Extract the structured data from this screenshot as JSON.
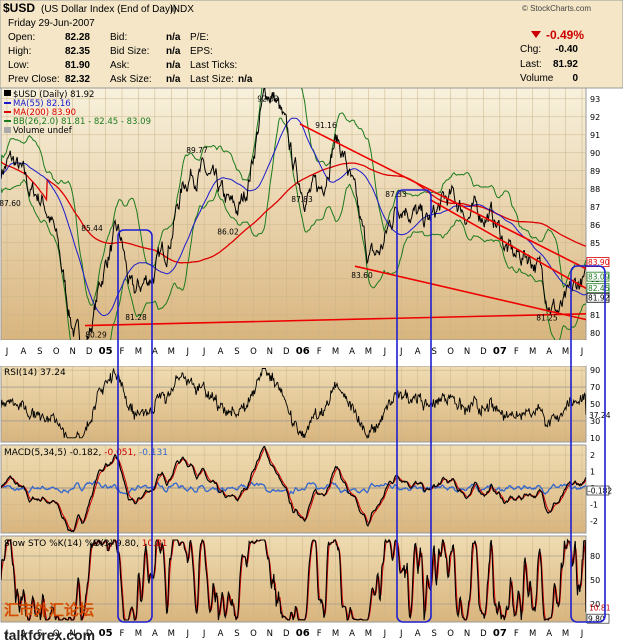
{
  "header": {
    "symbol": "$USD",
    "name": "(US Dollar Index (End of Day))",
    "exchange": "INDX",
    "date": "Friday  29-Jun-2007",
    "brand": "© StockCharts.com",
    "change_pct": "-0.49%",
    "chg_label": "Chg:",
    "chg_value": "-0.40",
    "last_label": "Last:",
    "last_value": "81.92",
    "volume_label": "Volume",
    "volume_value": "0",
    "quote": [
      {
        "label": "Open:",
        "value": "82.28"
      },
      {
        "label": "High:",
        "value": "82.35"
      },
      {
        "label": "Low:",
        "value": "81.90"
      },
      {
        "label": "Prev Close:",
        "value": "82.32"
      }
    ],
    "quote2": [
      {
        "label": "Bid:",
        "value": "n/a"
      },
      {
        "label": "Bid Size:",
        "value": "n/a"
      },
      {
        "label": "Ask:",
        "value": "n/a"
      },
      {
        "label": "Ask Size:",
        "value": "n/a"
      }
    ],
    "quote3": [
      {
        "label": "P/E:",
        "value": ""
      },
      {
        "label": "EPS:",
        "value": ""
      },
      {
        "label": "Last Ticks:",
        "value": ""
      },
      {
        "label": "Last Size:",
        "value": "n/a"
      }
    ]
  },
  "legend": {
    "price": "$USD (Daily) 81.92",
    "ma55": "MA(55) 82.16",
    "ma200": "MA(200) 83.90",
    "bb": "BB(26,2.0) 81.81 - 82.45 - 83.09",
    "volume": "Volume undef",
    "rsi": "RSI(14) 37.24",
    "macd_prefix": "MACD(5,34,5) -0.182,",
    "macd_signal": " -0.051,",
    "macd_hist": " -0.131",
    "stoch_prefix": "Slow STO %K(14) %D(3) 9.80,",
    "stoch_d": " 10.81"
  },
  "colors": {
    "panel_bg_top": "#f8f1dc",
    "panel_bg_bottom": "#d9b57e",
    "price": "#000000",
    "ma55": "#1a1acc",
    "ma200": "#dd0000",
    "bb": "#1d7a1d",
    "trend": "#ee0000",
    "highlight": "#1f1fd0",
    "macd_hist": "#3366cc",
    "stoch_d": "#cc0000",
    "down": "#cc0000"
  },
  "x_ticks": [
    "J",
    "A",
    "S",
    "O",
    "N",
    "D",
    "05",
    "F",
    "M",
    "A",
    "M",
    "J",
    "J",
    "A",
    "S",
    "O",
    "N",
    "D",
    "06",
    "F",
    "M",
    "A",
    "M",
    "J",
    "J",
    "A",
    "S",
    "O",
    "N",
    "D",
    "07",
    "F",
    "M",
    "A",
    "M",
    "J"
  ],
  "price_axis": {
    "min": 80,
    "max": 93,
    "ticks": [
      "80",
      "81",
      "82",
      "83",
      "84",
      "85",
      "86",
      "87",
      "88",
      "89",
      "90",
      "91",
      "92",
      "93"
    ]
  },
  "rsi_axis": {
    "ticks": [
      "10",
      "30",
      "50",
      "70",
      "90"
    ]
  },
  "macd_axis": {
    "ticks": [
      "-2",
      "-1",
      "0",
      "1",
      "2"
    ]
  },
  "stoch_axis": {
    "ticks": [
      "20",
      "50",
      "80"
    ]
  },
  "chart_data": {
    "type": "line",
    "title": "$USD (US Dollar Index (End of Day))",
    "x_range": [
      "Jul 2004",
      "Jun 2007"
    ],
    "price_anchors": [
      {
        "date": "2004-07",
        "value": 89.0
      },
      {
        "date": "2004-09",
        "value": 87.6
      },
      {
        "date": "2004-12",
        "value": 80.29
      },
      {
        "date": "2005-02",
        "value": 85.44
      },
      {
        "date": "2005-03",
        "value": 81.28
      },
      {
        "date": "2005-07",
        "value": 89.77
      },
      {
        "date": "2005-09",
        "value": 86.02
      },
      {
        "date": "2005-11",
        "value": 92.63
      },
      {
        "date": "2006-02",
        "value": 87.83
      },
      {
        "date": "2006-03",
        "value": 91.16
      },
      {
        "date": "2006-05",
        "value": 83.6
      },
      {
        "date": "2006-07",
        "value": 87.33
      },
      {
        "date": "2006-10",
        "value": 86.8
      },
      {
        "date": "2007-02",
        "value": 85.0
      },
      {
        "date": "2007-05",
        "value": 81.25
      },
      {
        "date": "2007-06",
        "value": 81.92
      }
    ],
    "annotations": [
      "92.63",
      "91.16",
      "89.77",
      "87.83",
      "87.33",
      "87.60",
      "86.02",
      "85.44",
      "83.60",
      "81.28",
      "81.25",
      "80.29"
    ],
    "right_labels": [
      "83.90",
      "83.09",
      "82.16",
      "82.45",
      "81.92"
    ],
    "rsi_last": "37.24",
    "macd_last": "-0.182",
    "stoch_last": "9.80",
    "stoch_d_last": "10.81"
  },
  "watermark": {
    "brand_cn": "汇市外汇论坛",
    "site": "talkforex.com"
  }
}
